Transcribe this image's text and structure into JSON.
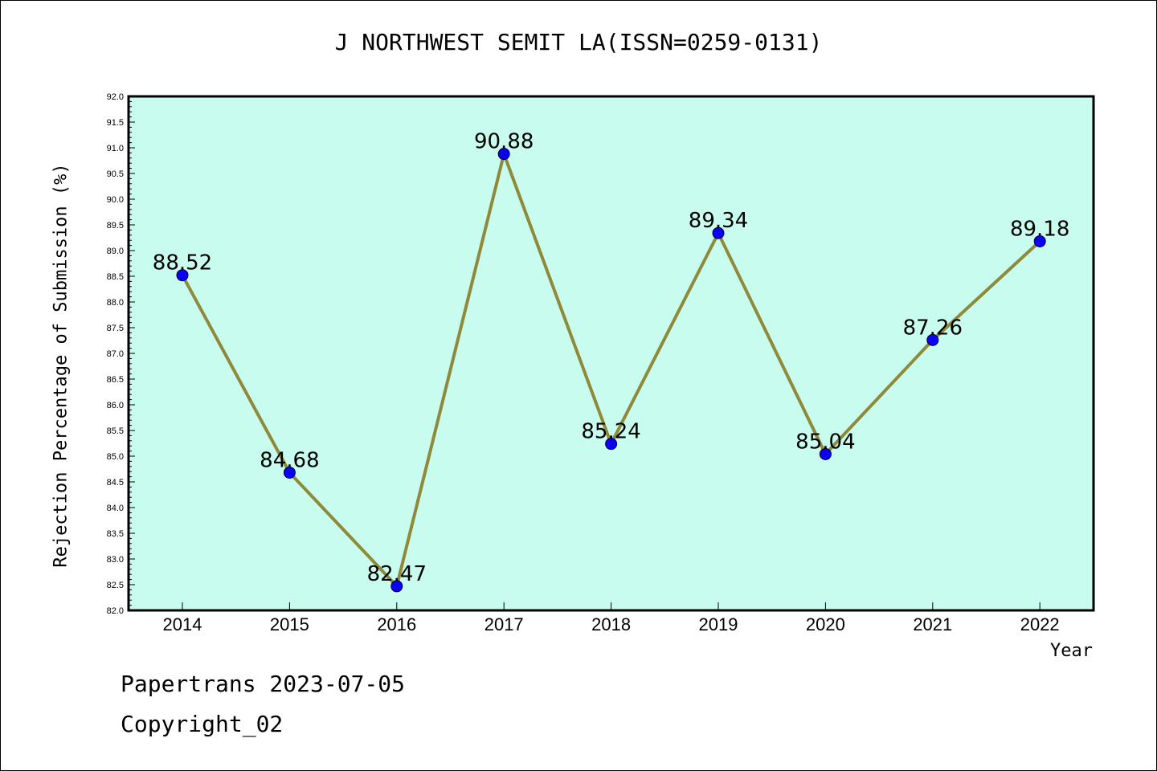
{
  "chart_data": {
    "type": "line",
    "title": "J NORTHWEST SEMIT LA(ISSN=0259-0131)",
    "xlabel": "Year",
    "ylabel": "Rejection Percentage of Submission (%)",
    "categories": [
      "2014",
      "2015",
      "2016",
      "2017",
      "2018",
      "2019",
      "2020",
      "2021",
      "2022"
    ],
    "values": [
      88.52,
      84.68,
      82.47,
      90.88,
      85.24,
      89.34,
      85.04,
      87.26,
      89.18
    ],
    "data_labels": [
      "88.52",
      "84.68",
      "82.47",
      "90.88",
      "85.24",
      "89.34",
      "85.04",
      "87.26",
      "89.18"
    ],
    "ylim": [
      82.0,
      92.0
    ],
    "y_ticks": [
      "82.0",
      "82.5",
      "83.0",
      "83.5",
      "84.0",
      "84.5",
      "85.0",
      "85.5",
      "86.0",
      "86.5",
      "87.0",
      "87.5",
      "88.0",
      "88.5",
      "89.0",
      "89.5",
      "90.0",
      "90.5",
      "91.0",
      "91.5",
      "92.0"
    ],
    "grid": false,
    "colors": {
      "plot_background": "#c8fcee",
      "line": "#8f8a3a",
      "marker": "#0a00f5"
    }
  },
  "footer": {
    "source": "Papertrans 2023-07-05",
    "copyright": "Copyright_02"
  }
}
